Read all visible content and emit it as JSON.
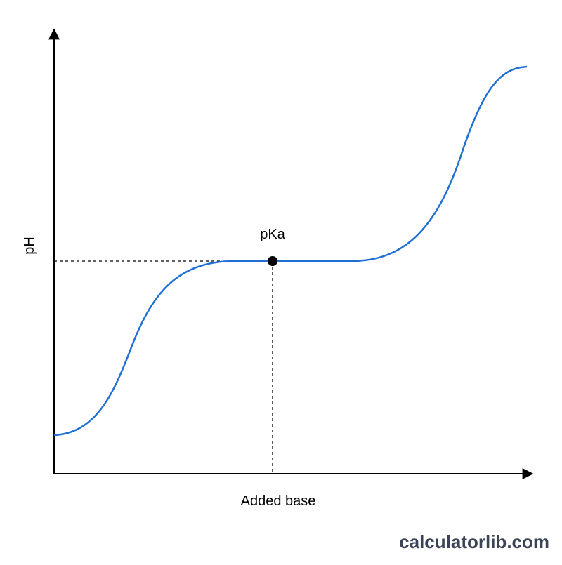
{
  "axes": {
    "y_label": "pH",
    "x_label": "Added base"
  },
  "point": {
    "label": "pKa"
  },
  "watermark": "calculatorlib.com"
}
